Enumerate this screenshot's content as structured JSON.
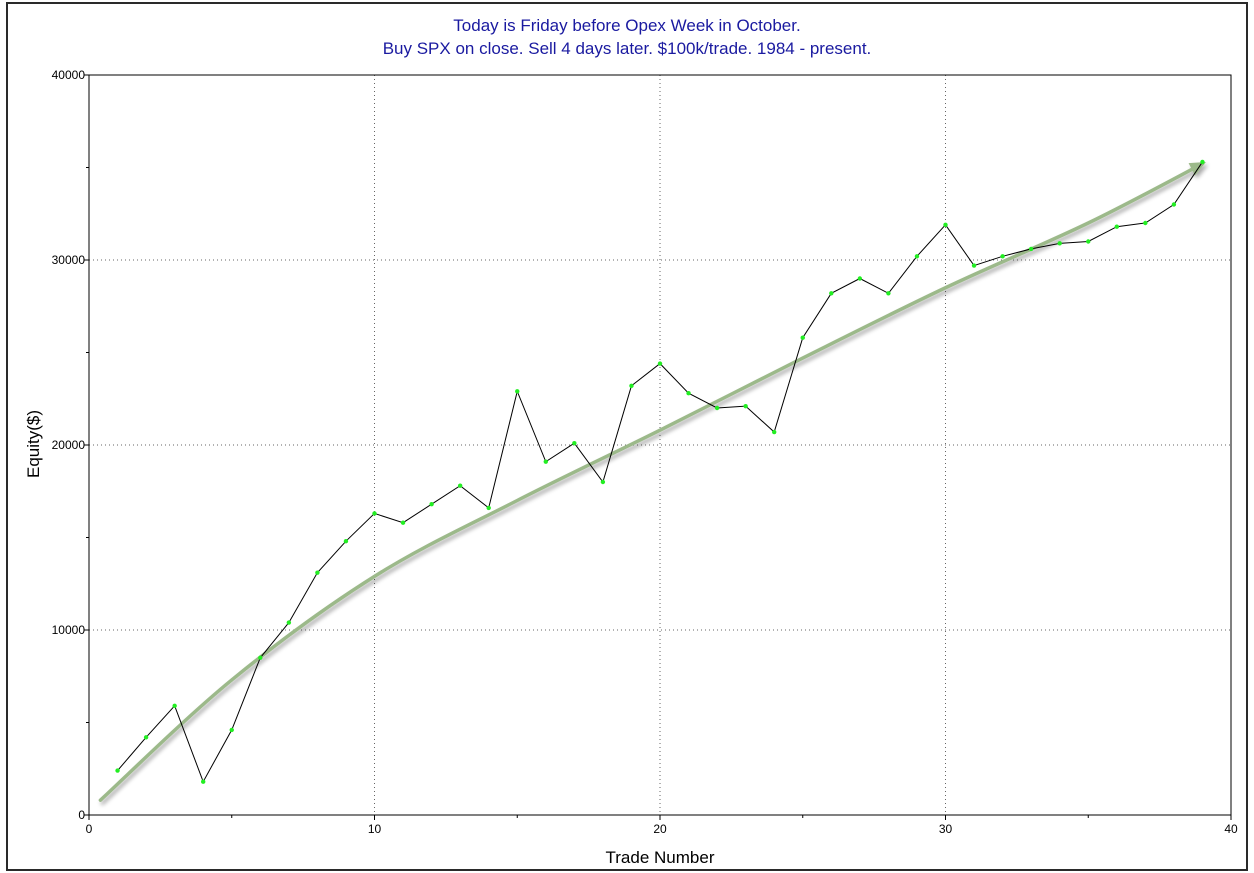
{
  "chart_data": {
    "type": "line",
    "title_lines": [
      "Today is Friday before Opex Week in October.",
      "Buy SPX on close. Sell 4 days later. $100k/trade. 1984 - present."
    ],
    "xlabel": "Trade Number",
    "ylabel": "Equity($)",
    "xlim": [
      0,
      40
    ],
    "ylim": [
      0,
      40000
    ],
    "x_ticks": [
      0,
      10,
      20,
      30,
      40
    ],
    "y_ticks": [
      0,
      10000,
      20000,
      30000,
      40000
    ],
    "grid": "dotted",
    "series": [
      {
        "type": "line",
        "color": "#000000",
        "marker_color": "#22ee22",
        "x": [
          1,
          2,
          3,
          4,
          5,
          6,
          7,
          8,
          9,
          10,
          11,
          12,
          13,
          14,
          15,
          16,
          17,
          18,
          19,
          20,
          21,
          22,
          23,
          24,
          25,
          26,
          27,
          28,
          29,
          30,
          31,
          32,
          33,
          34,
          35,
          36,
          37,
          38,
          39
        ],
        "y": [
          2400,
          4200,
          5900,
          1800,
          4600,
          8500,
          10400,
          13100,
          14800,
          16300,
          15800,
          16800,
          17800,
          16600,
          22900,
          19100,
          20100,
          18000,
          23200,
          24400,
          22800,
          22000,
          22100,
          20700,
          25800,
          28200,
          29000,
          28200,
          30200,
          31900,
          29700,
          30200,
          30600,
          30900,
          31000,
          31800,
          32000,
          33000,
          35300
        ]
      },
      {
        "type": "trend-arrow",
        "color": "#9cb98a",
        "x": [
          0.4,
          5,
          10,
          15,
          20,
          25,
          30,
          35,
          39
        ],
        "y": [
          800,
          7300,
          12900,
          17000,
          20800,
          24700,
          28500,
          32000,
          35200
        ]
      }
    ]
  }
}
